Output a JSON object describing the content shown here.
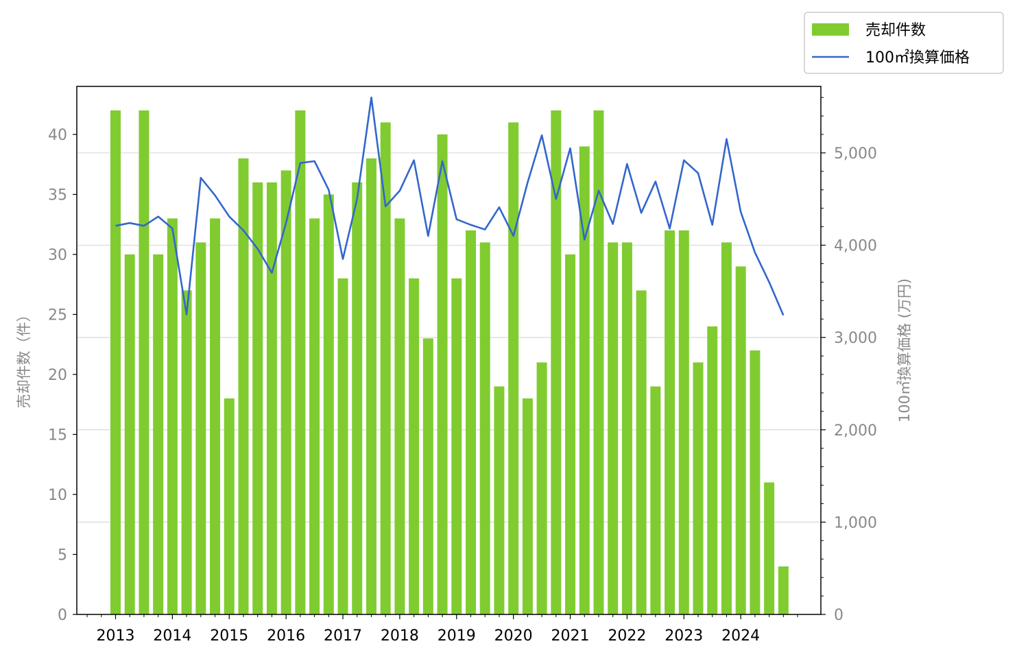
{
  "chart_data": {
    "type": "bar+line",
    "x_labels": [
      "2013",
      "2014",
      "2015",
      "2016",
      "2017",
      "2018",
      "2019",
      "2020",
      "2021",
      "2022",
      "2023",
      "2024"
    ],
    "x_periods": [
      "2013-Q1",
      "2013-Q2",
      "2013-Q3",
      "2013-Q4",
      "2014-Q1",
      "2014-Q2",
      "2014-Q3",
      "2014-Q4",
      "2015-Q1",
      "2015-Q2",
      "2015-Q3",
      "2015-Q4",
      "2016-Q1",
      "2016-Q2",
      "2016-Q3",
      "2016-Q4",
      "2017-Q1",
      "2017-Q2",
      "2017-Q3",
      "2017-Q4",
      "2018-Q1",
      "2018-Q2",
      "2018-Q3",
      "2018-Q4",
      "2019-Q1",
      "2019-Q2",
      "2019-Q3",
      "2019-Q4",
      "2020-Q1",
      "2020-Q2",
      "2020-Q3",
      "2020-Q4",
      "2021-Q1",
      "2021-Q2",
      "2021-Q3",
      "2021-Q4",
      "2022-Q1",
      "2022-Q2",
      "2022-Q3",
      "2022-Q4",
      "2023-Q1",
      "2023-Q2",
      "2023-Q3",
      "2023-Q4",
      "2024-Q1",
      "2024-Q2",
      "2024-Q3",
      "2024-Q4"
    ],
    "series": [
      {
        "name": "売却件数",
        "type": "bar",
        "axis": "left",
        "color": "#80cc30",
        "values": [
          42,
          30,
          42,
          30,
          33,
          27,
          31,
          33,
          18,
          38,
          36,
          36,
          37,
          42,
          33,
          35,
          28,
          36,
          38,
          41,
          33,
          28,
          23,
          40,
          28,
          32,
          31,
          19,
          41,
          18,
          21,
          42,
          30,
          39,
          42,
          31,
          31,
          27,
          19,
          32,
          32,
          21,
          24,
          31,
          29,
          22,
          11,
          4
        ]
      },
      {
        "name": "100㎡換算価格",
        "type": "line",
        "axis": "right",
        "color": "#3366cc",
        "values": [
          4210,
          4240,
          4210,
          4310,
          4180,
          3250,
          4730,
          4540,
          4310,
          4160,
          3960,
          3700,
          4240,
          4890,
          4910,
          4600,
          3850,
          4500,
          5600,
          4420,
          4590,
          4920,
          4100,
          4910,
          4280,
          4220,
          4170,
          4410,
          4100,
          4680,
          5190,
          4500,
          5050,
          4060,
          4590,
          4230,
          4880,
          4350,
          4690,
          4180,
          4920,
          4780,
          4220,
          5150,
          4360,
          3920,
          3600,
          3240
        ]
      }
    ],
    "y_left": {
      "label": "売却件数（件）",
      "lim": [
        0,
        44
      ],
      "ticks": [
        0,
        5,
        10,
        15,
        20,
        25,
        30,
        35,
        40
      ],
      "tick_labels": [
        "0",
        "5",
        "10",
        "15",
        "20",
        "25",
        "30",
        "35",
        "40"
      ]
    },
    "y_right": {
      "label": "100㎡換算価格 (万円)",
      "lim": [
        0,
        5720
      ],
      "ticks": [
        0,
        1000,
        2000,
        3000,
        4000,
        5000
      ],
      "tick_labels": [
        "0",
        "1,000",
        "2,000",
        "3,000",
        "4,000",
        "5,000"
      ]
    },
    "grid": "horizontal, right-axis major ticks",
    "legend": {
      "position": "top-right, outside plot",
      "entries": [
        "売却件数",
        "100㎡換算価格"
      ]
    }
  }
}
